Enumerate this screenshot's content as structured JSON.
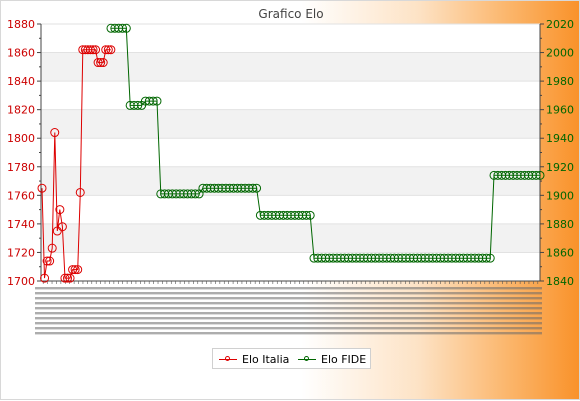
{
  "chart_data": {
    "type": "line",
    "title": "Grafico Elo",
    "left_axis": {
      "min": 1700,
      "max": 1880,
      "ticks": [
        1700,
        1720,
        1740,
        1760,
        1780,
        1800,
        1820,
        1840,
        1860,
        1880
      ],
      "color": "#cc0000"
    },
    "right_axis": {
      "min": 1840,
      "max": 2020,
      "ticks": [
        1840,
        1860,
        1880,
        1900,
        1920,
        1940,
        1960,
        1980,
        2000,
        2020
      ],
      "color": "#006600"
    },
    "grid": "horizontal bands",
    "legend_position": "bottom-center",
    "series": [
      {
        "name": "Elo Italia",
        "axis": "left",
        "color": "#dd0000",
        "values": [
          1765,
          1702,
          1714,
          1714,
          1723,
          1804,
          1735,
          1750,
          1738,
          1702,
          1702,
          1702,
          1708,
          1708,
          1708,
          1762,
          1862,
          1862,
          1862,
          1862,
          1862,
          1862,
          1853,
          1853,
          1853,
          1862,
          1862,
          1862
        ]
      },
      {
        "name": "Elo FIDE",
        "axis": "right",
        "color": "#006600",
        "values": [
          2017,
          2017,
          2017,
          2017,
          2017,
          1963,
          1963,
          1963,
          1963,
          1966,
          1966,
          1966,
          1966,
          1901,
          1901,
          1901,
          1901,
          1901,
          1901,
          1901,
          1901,
          1901,
          1901,
          1901,
          1905,
          1905,
          1905,
          1905,
          1905,
          1905,
          1905,
          1905,
          1905,
          1905,
          1905,
          1905,
          1905,
          1905,
          1905,
          1886,
          1886,
          1886,
          1886,
          1886,
          1886,
          1886,
          1886,
          1886,
          1886,
          1886,
          1886,
          1886,
          1886,
          1856,
          1856,
          1856,
          1856,
          1856,
          1856,
          1856,
          1856,
          1856,
          1856,
          1856,
          1856,
          1856,
          1856,
          1856,
          1856,
          1856,
          1856,
          1856,
          1856,
          1856,
          1856,
          1856,
          1856,
          1856,
          1856,
          1856,
          1856,
          1856,
          1856,
          1856,
          1856,
          1856,
          1856,
          1856,
          1856,
          1856,
          1856,
          1856,
          1856,
          1856,
          1856,
          1856,
          1856,
          1856,
          1856,
          1856,
          1914,
          1914,
          1914,
          1914,
          1914,
          1914,
          1914,
          1914,
          1914,
          1914,
          1914,
          1914,
          1914
        ]
      }
    ]
  }
}
